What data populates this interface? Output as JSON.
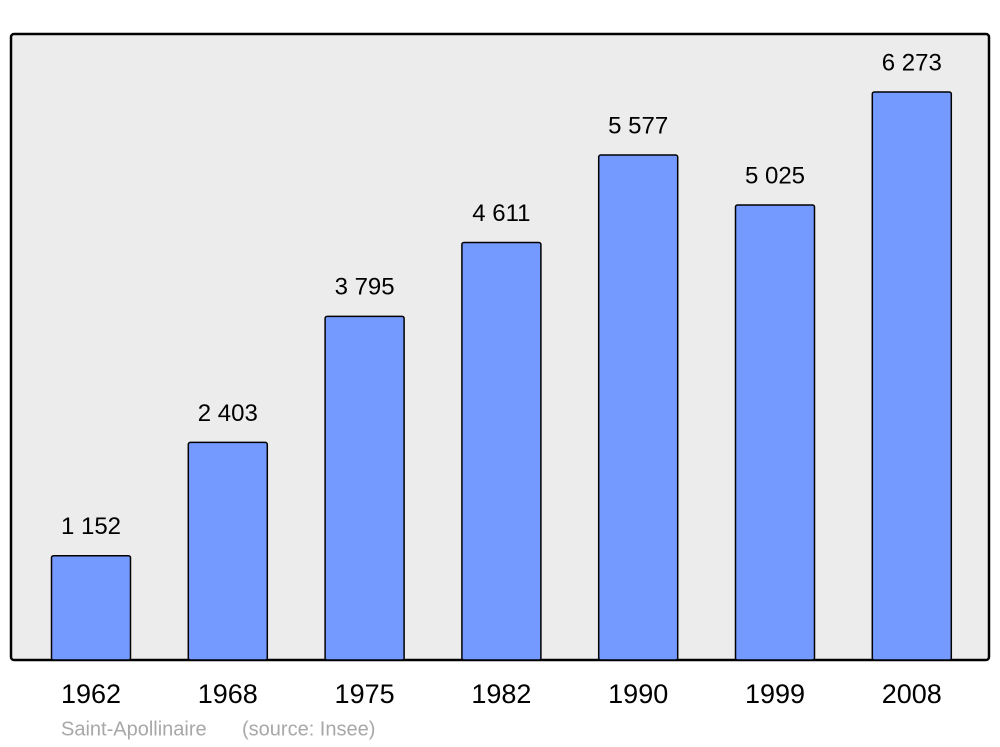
{
  "chart_data": {
    "type": "bar",
    "categories": [
      "1962",
      "1968",
      "1975",
      "1982",
      "1990",
      "1999",
      "2008"
    ],
    "values": [
      1152,
      2403,
      3795,
      4611,
      5577,
      5025,
      6273
    ],
    "value_labels": [
      "1 152",
      "2 403",
      "3 795",
      "4 611",
      "5 577",
      "5 025",
      "6 273"
    ],
    "color": "#7499ff",
    "caption": "Saint-Apollinaire",
    "source": "(source: Insee)"
  }
}
